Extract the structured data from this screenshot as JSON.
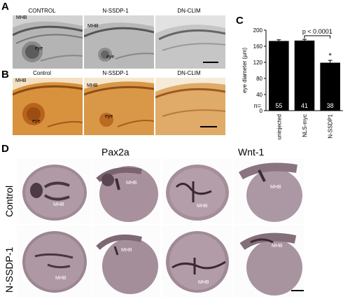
{
  "panel_letters": {
    "a": "A",
    "b": "B",
    "c": "C",
    "d": "D"
  },
  "panel_a": {
    "headers": [
      "CONTROL",
      "N-SSDP-1",
      "DN-CLIM"
    ],
    "labels": {
      "mhb": "MHB",
      "eye": "eye"
    }
  },
  "panel_b": {
    "headers": [
      "Control",
      "N-SSDP-1",
      "DN-CLIM"
    ],
    "labels": {
      "mhb": "MHB",
      "eye": "eye"
    }
  },
  "chart_data": {
    "type": "bar",
    "categories": [
      "uninjected",
      "NLS-myc",
      "N-SSDP1"
    ],
    "values": [
      173,
      174,
      119
    ],
    "errors": [
      3,
      3,
      6
    ],
    "n_values": [
      "55",
      "41",
      "38"
    ],
    "n_label": "n=",
    "ylabel": "eye diameter (µm)",
    "ylim": [
      0,
      200
    ],
    "yticks": [
      "0",
      "40",
      "80",
      "120",
      "160",
      "200"
    ],
    "annotation": "p < 0.0001",
    "significance_marker": "*",
    "bar_color": "#000000"
  },
  "panel_d": {
    "column_headers": [
      "Pax2a",
      "Wnt-1"
    ],
    "row_labels": [
      "Control",
      "N-SSDP-1"
    ],
    "labels": {
      "mhb": "MHB"
    }
  }
}
